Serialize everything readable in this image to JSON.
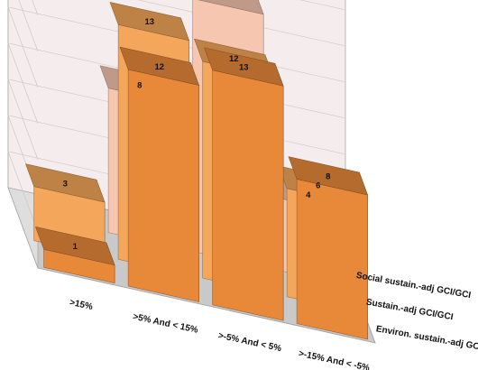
{
  "chart_data": {
    "type": "bar",
    "title": "",
    "categories": [
      ">15%",
      ">5% And < 15%",
      ">-5% And < 5%",
      ">-15% And < -5%"
    ],
    "series": [
      {
        "name": "Environ. sustain.-adj GCI/GCI",
        "values": [
          1,
          12,
          13,
          8
        ],
        "color": "#E8893A"
      },
      {
        "name": "Sustain.-adj GCI/GCI",
        "values": [
          3,
          13,
          12,
          6
        ],
        "color": "#F4A65A"
      },
      {
        "name": "Social sustain.-adj GCI/GCI",
        "values": [
          null,
          8,
          14,
          4
        ],
        "color": "#F6C6B0"
      }
    ],
    "grid": true,
    "legend": "none"
  }
}
